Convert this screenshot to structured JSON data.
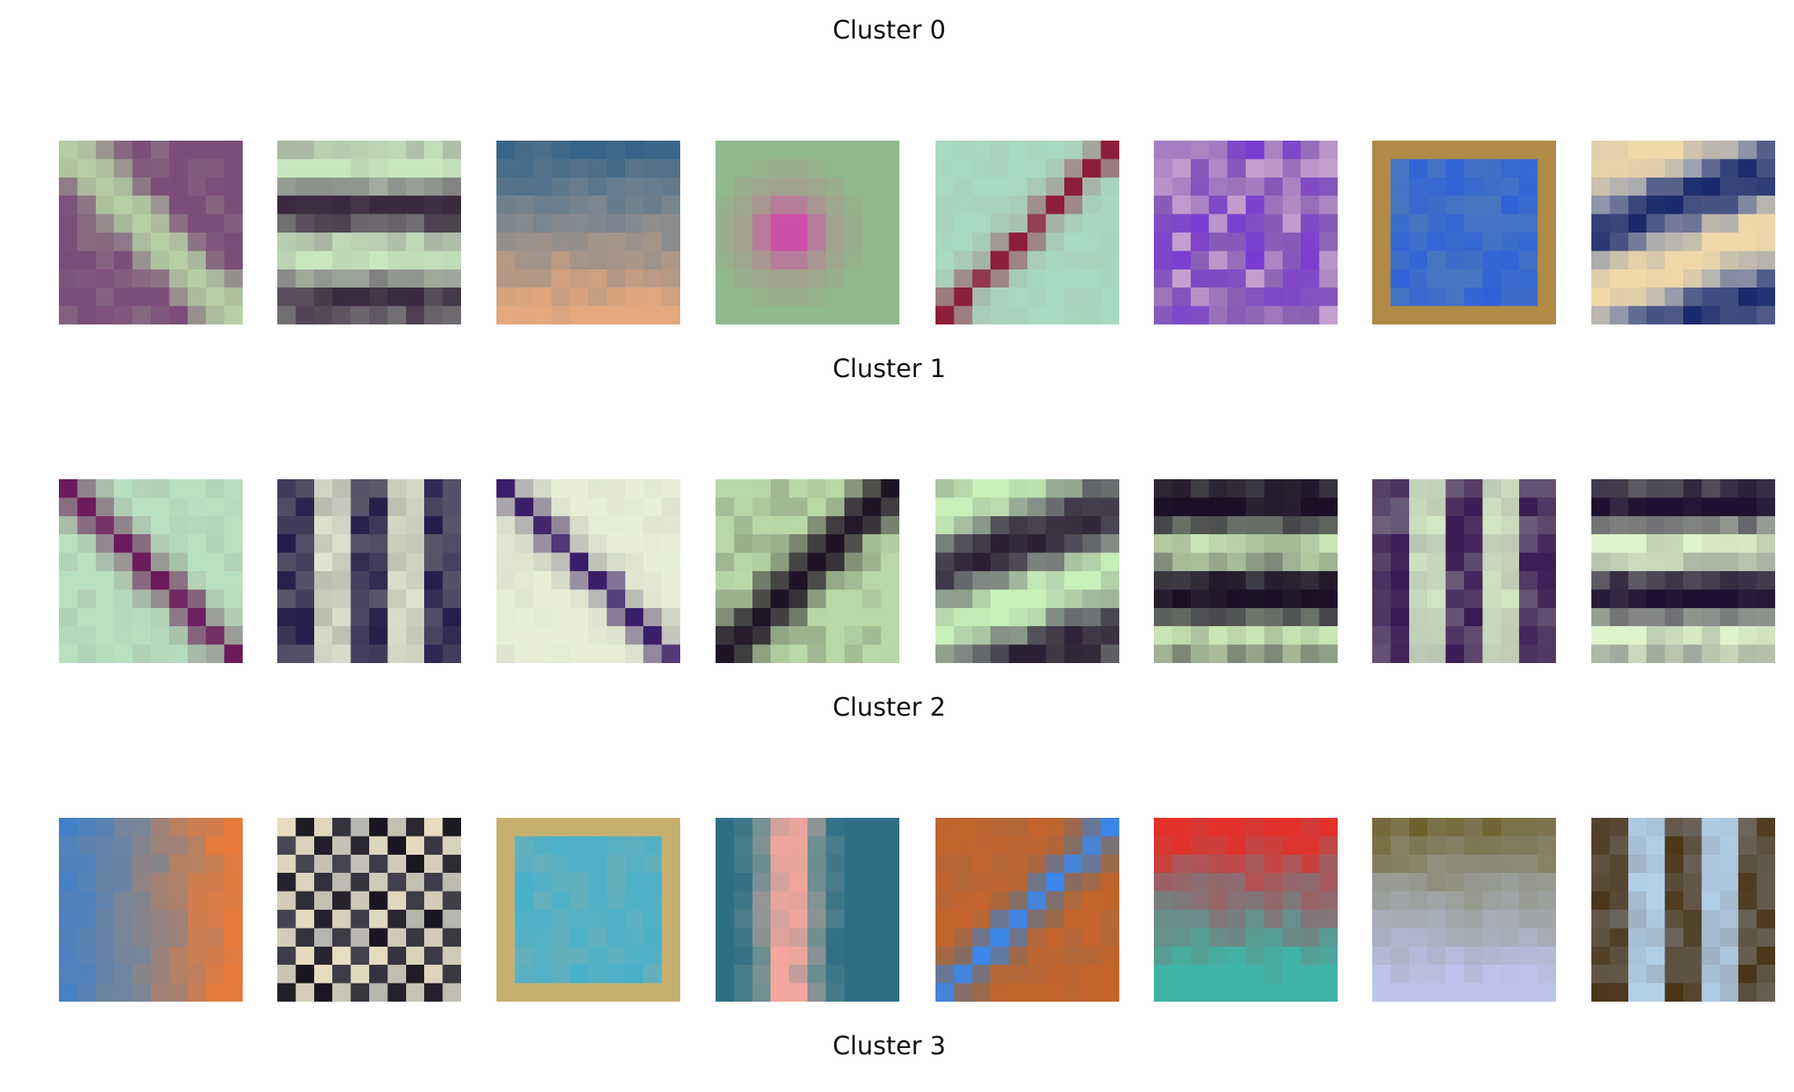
{
  "figure": {
    "clusters": [
      {
        "title": "Cluster 0",
        "filters": [
          {
            "name": "purple-diagonal-patch",
            "colors": [
              "#b6cfa4",
              "#7c4d79"
            ],
            "pattern": "diag-down",
            "bg": "#a9b79c"
          },
          {
            "name": "horizontal-green-dark-stripes",
            "colors": [
              "#c9e7bf",
              "#3b2940"
            ],
            "pattern": "h-stripes",
            "bg": "#8f948e"
          },
          {
            "name": "orange-blue-horizontal-bands",
            "colors": [
              "#e5a87c",
              "#2a5d86"
            ],
            "pattern": "h-bands",
            "bg": "#7c8790"
          },
          {
            "name": "magenta-center-blob",
            "colors": [
              "#e02cb4",
              "#8fba8d"
            ],
            "pattern": "center-blob",
            "bg": "#a4a08e"
          },
          {
            "name": "red-diagonal-stripe",
            "colors": [
              "#8c1e39",
              "#a8d9c2"
            ],
            "pattern": "diag-up",
            "bg": "#a8c2b2"
          },
          {
            "name": "purple-texture",
            "colors": [
              "#7a3ad3",
              "#c7a1d0"
            ],
            "pattern": "noise",
            "bg": "#8a63b3"
          },
          {
            "name": "blue-square-orange-border",
            "colors": [
              "#2f62d9",
              "#b18a45"
            ],
            "pattern": "square",
            "bg": "#5f8ba6"
          },
          {
            "name": "cream-navy-diagonal",
            "colors": [
              "#f0d9a9",
              "#1a2a6c"
            ],
            "pattern": "h-wave",
            "bg": "#9ea3b0"
          }
        ]
      },
      {
        "title": "Cluster 1",
        "filters": [
          {
            "name": "purple-diagonal-band",
            "colors": [
              "#6b1a5c",
              "#b9e1c0"
            ],
            "pattern": "diag-down",
            "bg": "#9ea79b"
          },
          {
            "name": "vertical-stripes",
            "colors": [
              "#231b4a",
              "#e6ecd6"
            ],
            "pattern": "v-stripes",
            "bg": "#99998f"
          },
          {
            "name": "indigo-diagonal-light",
            "colors": [
              "#3b1e6a",
              "#e8efd6"
            ],
            "pattern": "diag-down",
            "bg": "#c6c8bd"
          },
          {
            "name": "dark-green-diagonal-lines",
            "colors": [
              "#1f1426",
              "#b8d9a6"
            ],
            "pattern": "diag-up",
            "bg": "#4f4f4c"
          },
          {
            "name": "green-dark-tilted-stripes",
            "colors": [
              "#c8f0b8",
              "#2b1f35"
            ],
            "pattern": "h-wave",
            "bg": "#7c8580"
          },
          {
            "name": "horizontal-dark-bands",
            "colors": [
              "#1a0f26",
              "#c9e6b5"
            ],
            "pattern": "h-stripes",
            "bg": "#585c59"
          },
          {
            "name": "vertical-center-stripe",
            "colors": [
              "#3a1a55",
              "#d6efc8"
            ],
            "pattern": "v-stripes",
            "bg": "#a6a7a1"
          },
          {
            "name": "horizontal-center-bars",
            "colors": [
              "#1d1030",
              "#def4cc"
            ],
            "pattern": "h-stripes",
            "bg": "#868a86"
          }
        ]
      },
      {
        "title": "Cluster 2",
        "filters": [
          {
            "name": "orange-blue-vertical",
            "colors": [
              "#e87a3a",
              "#3a7fd0"
            ],
            "pattern": "v-bands",
            "bg": "#7a8595"
          },
          {
            "name": "checkerboard",
            "colors": [
              "#1b1722",
              "#f1e6c4"
            ],
            "pattern": "checker",
            "bg": "#8d93a0"
          },
          {
            "name": "teal-square-tan-border",
            "colors": [
              "#49b0c9",
              "#c7b06f"
            ],
            "pattern": "square",
            "bg": "#7fb0b0"
          },
          {
            "name": "pink-vertical-stripe",
            "colors": [
              "#f3a69d",
              "#2f6f86"
            ],
            "pattern": "v-center",
            "bg": "#6e8e92"
          },
          {
            "name": "blue-orange-diagonal",
            "colors": [
              "#3b86e8",
              "#c2642b"
            ],
            "pattern": "diag-up",
            "bg": "#8a6c5c"
          },
          {
            "name": "teal-top-red-bottom",
            "colors": [
              "#3fb3a5",
              "#e2302a"
            ],
            "pattern": "v-split",
            "bg": "#8a6e73"
          },
          {
            "name": "lavender-band-olive",
            "colors": [
              "#bcc4ee",
              "#6b5a1f"
            ],
            "pattern": "h-bands",
            "bg": "#9b9f9a"
          },
          {
            "name": "brown-light-blue-vertical",
            "colors": [
              "#4a3518",
              "#b6d7f0"
            ],
            "pattern": "v-stripes",
            "bg": "#8f98a3"
          }
        ]
      }
    ],
    "last_title": "Cluster 3"
  }
}
